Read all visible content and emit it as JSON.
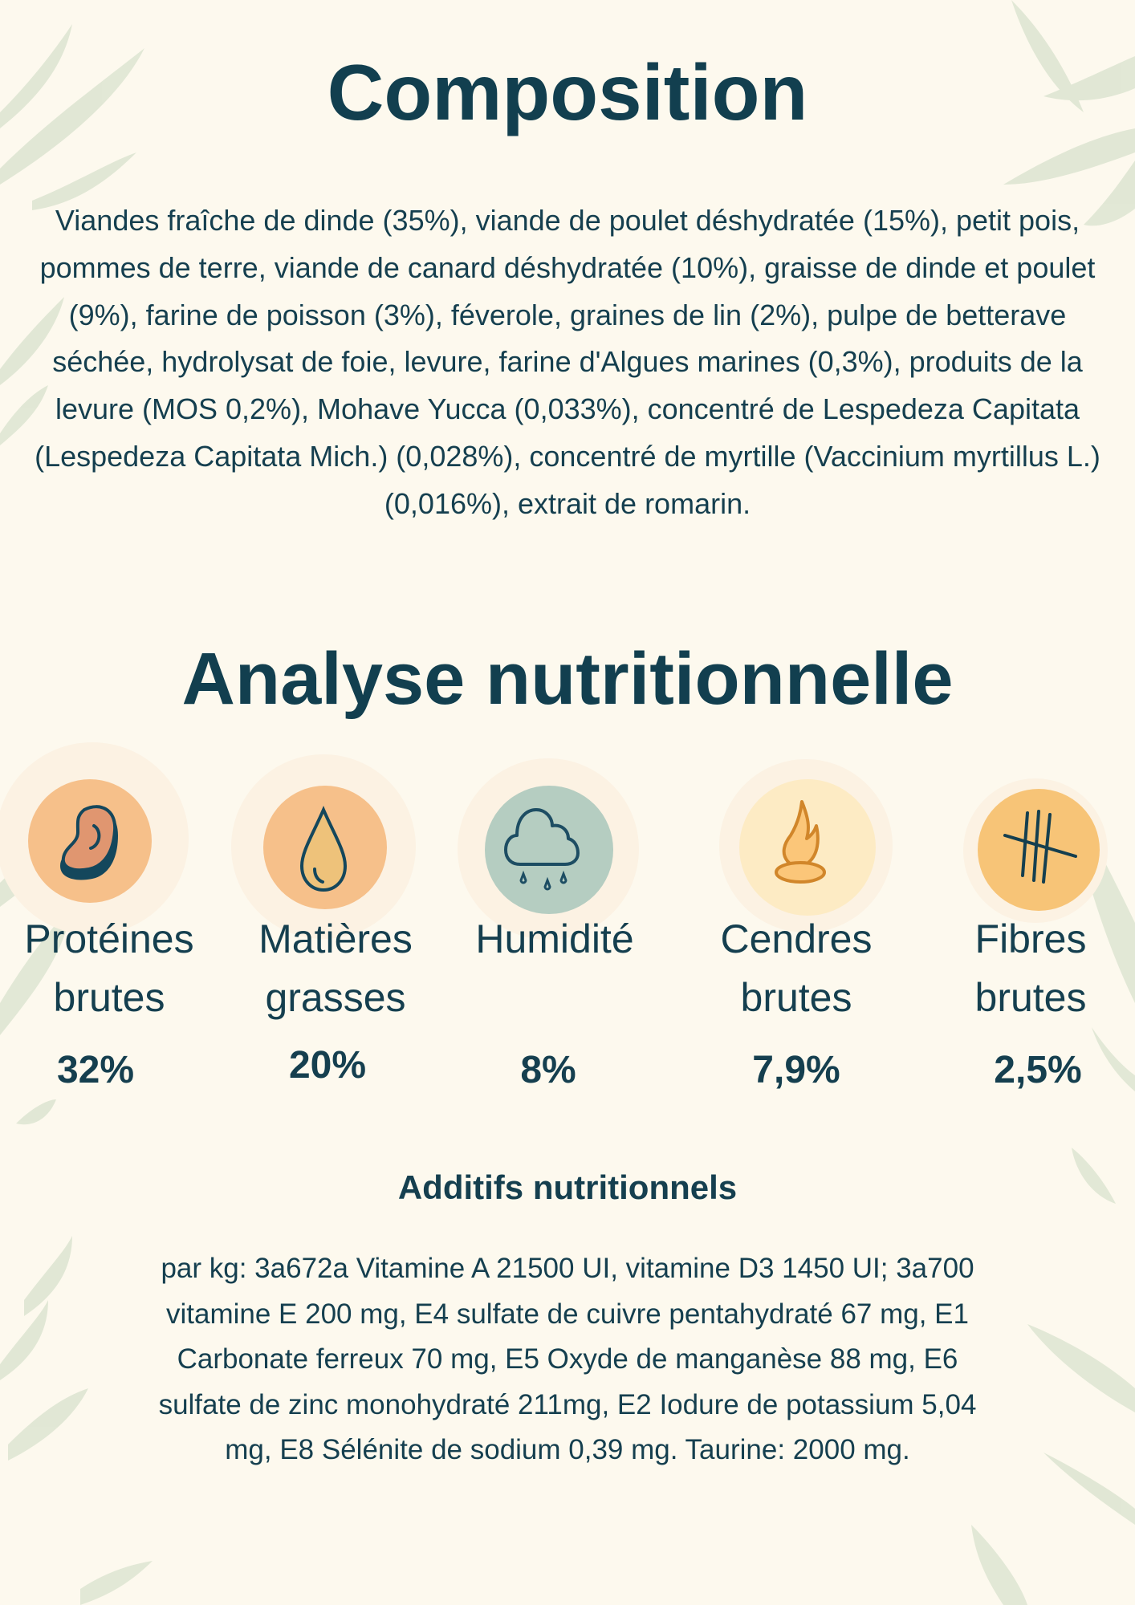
{
  "composition": {
    "title": "Composition",
    "text": "Viandes fraîche de dinde (35%), viande de poulet déshydratée (15%), petit pois, pommes de terre, viande de canard déshydratée (10%), graisse de dinde et poulet (9%), farine de poisson (3%), féverole, graines de lin (2%), pulpe de betterave séchée, hydrolysat de foie, levure, farine d'Algues marines (0,3%), produits de la levure (MOS 0,2%), Mohave Yucca (0,033%), concentré de Lespedeza Capitata (Lespedeza Capitata Mich.) (0,028%), concentré de myrtille (Vaccinium myrtillus L.) (0,016%), extrait de romarin."
  },
  "analysis": {
    "title": "Analyse nutritionnelle",
    "items": [
      {
        "label_1": "Protéines",
        "label_2": "brutes",
        "value": "32%",
        "icon": "meat-icon",
        "color": "#f6c08a"
      },
      {
        "label_1": "Matières",
        "label_2": "grasses",
        "value": "20%",
        "icon": "drop-icon",
        "color": "#f6c08a"
      },
      {
        "label_1": "Humidité",
        "label_2": "",
        "value": "8%",
        "icon": "rain-cloud-icon",
        "color": "#b5cdc1"
      },
      {
        "label_1": "Cendres",
        "label_2": "brutes",
        "value": "7,9%",
        "icon": "flame-icon",
        "color": "#fdebc4"
      },
      {
        "label_1": "Fibres",
        "label_2": "brutes",
        "value": "2,5%",
        "icon": "tally-marks-icon",
        "color": "#f7c477"
      }
    ]
  },
  "additives": {
    "title": "Additifs nutritionnels",
    "text": "par kg: 3a672a Vitamine A 21500 UI, vitamine D3 1450 UI; 3a700 vitamine E 200 mg, E4 sulfate de cuivre pentahydraté 67 mg, E1 Carbonate ferreux 70 mg, E5 Oxyde de manganèse 88 mg, E6 sulfate de zinc monohydraté 211mg, E2 Iodure de potassium 5,04 mg, E8 Sélénite de sodium 0,39 mg. Taurine: 2000 mg."
  },
  "colors": {
    "background": "#fdf9ee",
    "text": "#153f4f",
    "leaf": "#dfe6d3"
  }
}
